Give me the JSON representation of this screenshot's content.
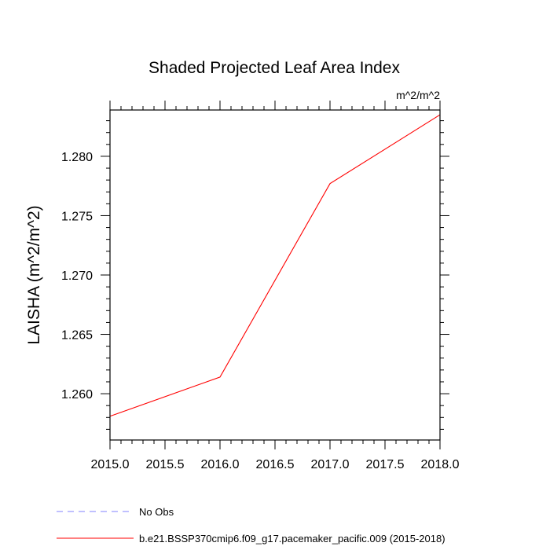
{
  "chart_data": {
    "type": "line",
    "title": "Shaded Projected Leaf Area Index",
    "units_label": "m^2/m^2",
    "xlabel": "",
    "ylabel": "LAISHA  (m^2/m^2)",
    "xlim": [
      2015.0,
      2018.0
    ],
    "ylim": [
      1.2561,
      1.2839
    ],
    "xticks": [
      2015.0,
      2015.5,
      2016.0,
      2016.5,
      2017.0,
      2017.5,
      2018.0
    ],
    "xtick_labels": [
      "2015.0",
      "2015.5",
      "2016.0",
      "2016.5",
      "2017.0",
      "2017.5",
      "2018.0"
    ],
    "yticks": [
      1.26,
      1.265,
      1.27,
      1.275,
      1.28
    ],
    "ytick_labels": [
      "1.260",
      "1.265",
      "1.270",
      "1.275",
      "1.280"
    ],
    "series": [
      {
        "name": "b.e21.BSSP370cmip6.f09_g17.pacemaker_pacific.009 (2015-2018)",
        "color": "#ff0000",
        "style": "solid",
        "x": [
          2015.0,
          2016.0,
          2017.0,
          2018.0
        ],
        "y": [
          1.2581,
          1.2614,
          1.2777,
          1.2835
        ]
      }
    ],
    "legend": [
      {
        "label": "No Obs",
        "color": "#8080ff",
        "style": "dashed"
      },
      {
        "label": "b.e21.BSSP370cmip6.f09_g17.pacemaker_pacific.009 (2015-2018)",
        "color": "#ff0000",
        "style": "solid"
      }
    ],
    "legend_position": "bottom"
  }
}
